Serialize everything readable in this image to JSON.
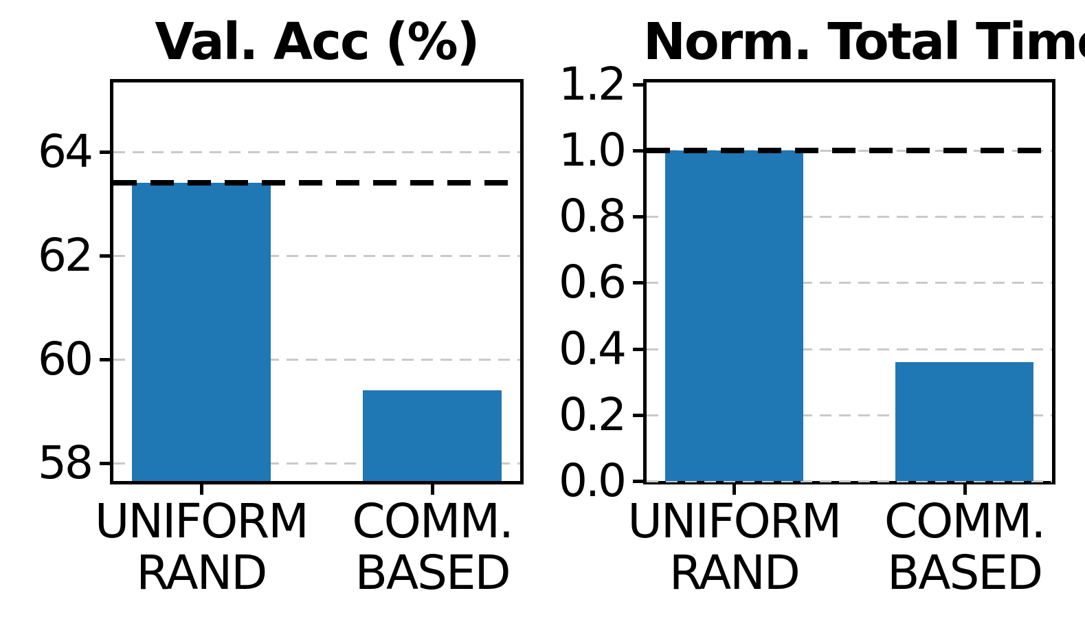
{
  "figure": {
    "background": "#ffffff"
  },
  "colors": {
    "bar": "#1f77b4",
    "gridline": "#c9c9c9",
    "refline": "#000000",
    "axis": "#000000",
    "text": "#000000"
  },
  "chart_data": [
    {
      "type": "bar",
      "title": "Val. Acc (%)",
      "categories": [
        [
          "UNIFORM",
          "RAND"
        ],
        [
          "COMM.",
          "BASED"
        ]
      ],
      "values": [
        63.4,
        59.4
      ],
      "yticks": [
        58,
        60,
        62,
        64
      ],
      "ytick_labels": [
        "58",
        "60",
        "62",
        "64"
      ],
      "ylim": [
        57.66,
        65.33
      ],
      "xlim": [
        -0.38,
        1.38
      ],
      "bar_width_frac": 0.6,
      "grid": true,
      "grid_style": "dashed",
      "refline": {
        "value": 63.4,
        "style": "dashed",
        "color": "#000000"
      },
      "legend": null,
      "xlabel": "",
      "ylabel": ""
    },
    {
      "type": "bar",
      "title": "Norm. Total Time",
      "categories": [
        [
          "UNIFORM",
          "RAND"
        ],
        [
          "COMM.",
          "BASED"
        ]
      ],
      "values": [
        1.0,
        0.36
      ],
      "yticks": [
        0.0,
        0.2,
        0.4,
        0.6,
        0.8,
        1.0,
        1.2
      ],
      "ytick_labels": [
        "0.0",
        "0.2",
        "0.4",
        "0.6",
        "0.8",
        "1.0",
        "1.2"
      ],
      "ylim": [
        0,
        1.206
      ],
      "xlim": [
        -0.38,
        1.38
      ],
      "bar_width_frac": 0.6,
      "grid": true,
      "grid_style": "dashed",
      "refline": {
        "value": 1.0,
        "style": "dashed",
        "color": "#000000"
      },
      "legend": null,
      "xlabel": "",
      "ylabel": ""
    }
  ]
}
